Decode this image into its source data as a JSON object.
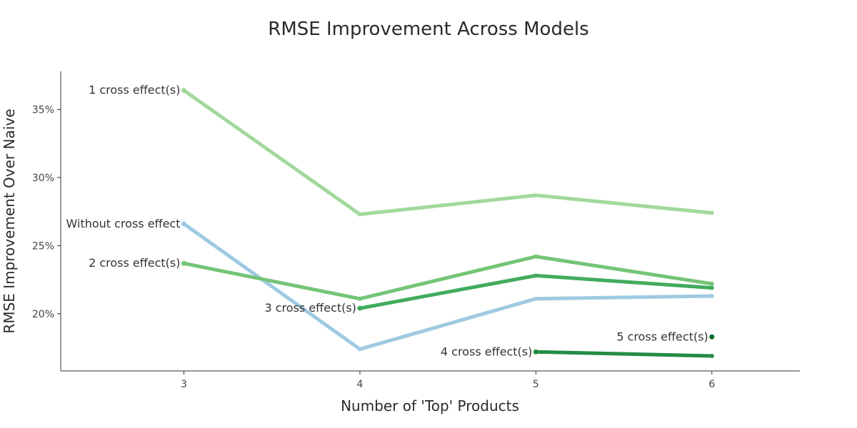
{
  "chart_data": {
    "type": "line",
    "title": "RMSE Improvement Across Models",
    "xlabel": "Number of 'Top' Products",
    "ylabel": "RMSE Improvement Over Naive",
    "x": [
      3,
      4,
      5,
      6
    ],
    "xticks": [
      "3",
      "4",
      "5",
      "6"
    ],
    "xlim": [
      2.3,
      6.5
    ],
    "ylim": [
      15.8,
      37.8
    ],
    "yticks": [
      {
        "value": 20,
        "label": "20%"
      },
      {
        "value": 25,
        "label": "25%"
      },
      {
        "value": 30,
        "label": "30%"
      },
      {
        "value": 35,
        "label": "35%"
      }
    ],
    "grid": false,
    "series": [
      {
        "name": "1 cross effect(s)",
        "color": "#a1d99b",
        "x": [
          3,
          4,
          5,
          6
        ],
        "values": [
          36.4,
          27.3,
          28.7,
          27.4
        ]
      },
      {
        "name": "Without cross effect",
        "color": "#9ecae1",
        "x": [
          3,
          4,
          5,
          6
        ],
        "values": [
          26.6,
          17.4,
          21.1,
          21.3
        ]
      },
      {
        "name": "2 cross effect(s)",
        "color": "#74c476",
        "x": [
          3,
          4,
          5,
          6
        ],
        "values": [
          23.7,
          21.1,
          24.2,
          22.2
        ]
      },
      {
        "name": "3 cross effect(s)",
        "color": "#41ab5d",
        "x": [
          4,
          5,
          6
        ],
        "values": [
          20.4,
          22.8,
          21.9
        ]
      },
      {
        "name": "4 cross effect(s)",
        "color": "#238b45",
        "x": [
          5,
          6
        ],
        "values": [
          17.2,
          16.9
        ]
      },
      {
        "name": "5 cross effect(s)",
        "color": "#006d2c",
        "x": [
          6
        ],
        "values": [
          18.3
        ]
      }
    ]
  }
}
